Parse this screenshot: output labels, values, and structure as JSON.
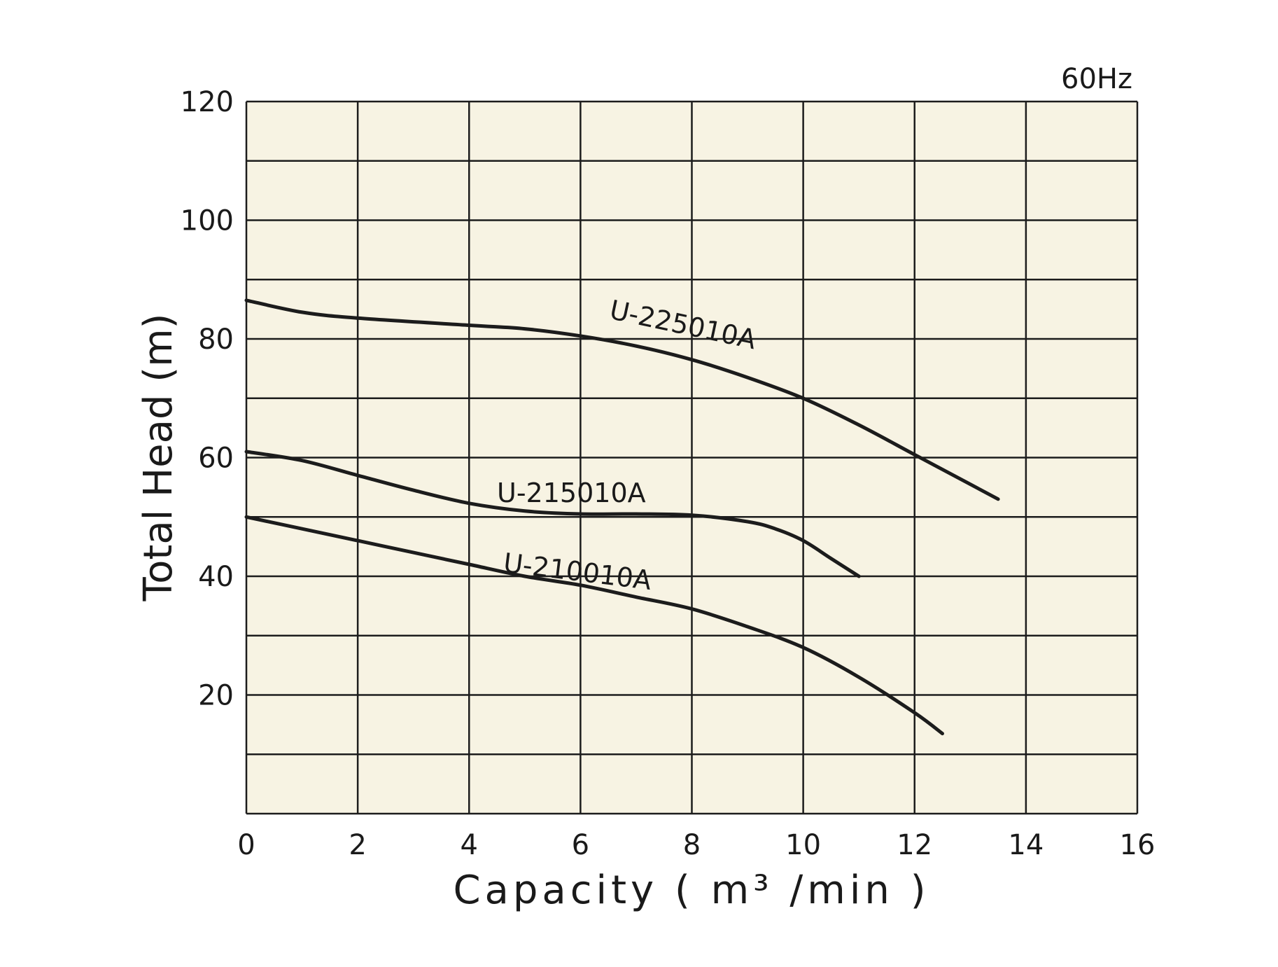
{
  "chart_data": {
    "type": "line",
    "frequency_note": "60Hz",
    "xlabel": "Capacity",
    "xlabel_unit": "( m³ /min )",
    "ylabel": "Total Head (m)",
    "xlim": [
      0,
      16
    ],
    "ylim": [
      0,
      120
    ],
    "x_ticks": [
      "0",
      "2",
      "4",
      "6",
      "8",
      "10",
      "12",
      "14",
      "16"
    ],
    "y_ticks": [
      "20",
      "40",
      "60",
      "80",
      "100",
      "120"
    ],
    "grid": true,
    "colors": {
      "plot_background": "#f7f3e3",
      "line": "#1c1c1c"
    },
    "series": [
      {
        "name": "U-225010A",
        "x": [
          0,
          1,
          2,
          4,
          5,
          6,
          7,
          8,
          9,
          10,
          11,
          12,
          13,
          13.5
        ],
        "y": [
          86.5,
          84.5,
          83.5,
          82.3,
          81.7,
          80.5,
          78.8,
          76.5,
          73.5,
          70,
          65.5,
          60.5,
          55.5,
          53
        ]
      },
      {
        "name": "U-215010A",
        "x": [
          0,
          1,
          2,
          3,
          4,
          5,
          6,
          7,
          8,
          9,
          9.5,
          10,
          10.5,
          11
        ],
        "y": [
          61,
          59.5,
          57,
          54.5,
          52.3,
          51,
          50.5,
          50.5,
          50.3,
          49.2,
          48,
          46,
          43,
          40
        ]
      },
      {
        "name": "U-210010A",
        "x": [
          0,
          1,
          2,
          3,
          4,
          5,
          6,
          7,
          8,
          9,
          10,
          11,
          12,
          12.5
        ],
        "y": [
          50,
          48,
          46,
          44,
          42,
          40,
          38.5,
          36.5,
          34.5,
          31.5,
          28,
          23,
          17,
          13.5
        ]
      }
    ]
  }
}
